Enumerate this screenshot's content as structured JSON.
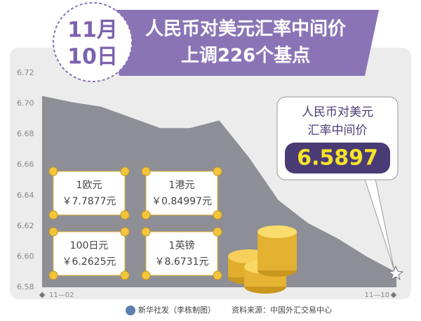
{
  "chart_data": {
    "type": "area",
    "title": "人民币对美元汇率中间价",
    "subtitle": "上调226个基点",
    "date_badge": [
      "11月",
      "10日"
    ],
    "categories": [
      "11—02",
      null,
      null,
      null,
      null,
      null,
      null,
      null,
      null,
      null,
      null,
      null,
      "11—10"
    ],
    "values": [
      6.705,
      6.701,
      6.698,
      6.691,
      6.684,
      6.684,
      6.689,
      6.665,
      6.637,
      6.622,
      6.612,
      6.6,
      6.5897
    ],
    "color": "#8e8f96",
    "ylim": [
      6.58,
      6.72
    ],
    "yticks": [
      6.58,
      {
        "value": 6.6,
        "label": "6.60"
      },
      6.62,
      6.64,
      6.66,
      6.68,
      {
        "value": 6.7,
        "label": "6.70"
      },
      6.72
    ],
    "annotation": {
      "lines": [
        "人民币对美元",
        "汇率中间价"
      ],
      "value_text": "6.5897"
    },
    "cards": [
      {
        "name": "1欧元",
        "rate": "￥7.7877元"
      },
      {
        "name": "1港元",
        "rate": "￥0.84997元"
      },
      {
        "name": "100日元",
        "rate": "￥6.2625元"
      },
      {
        "name": "1英镑",
        "rate": "￥8.6731元"
      }
    ],
    "credit": "新华社发（李栋制图）",
    "source": "资料来源：中国外汇交易中心"
  }
}
